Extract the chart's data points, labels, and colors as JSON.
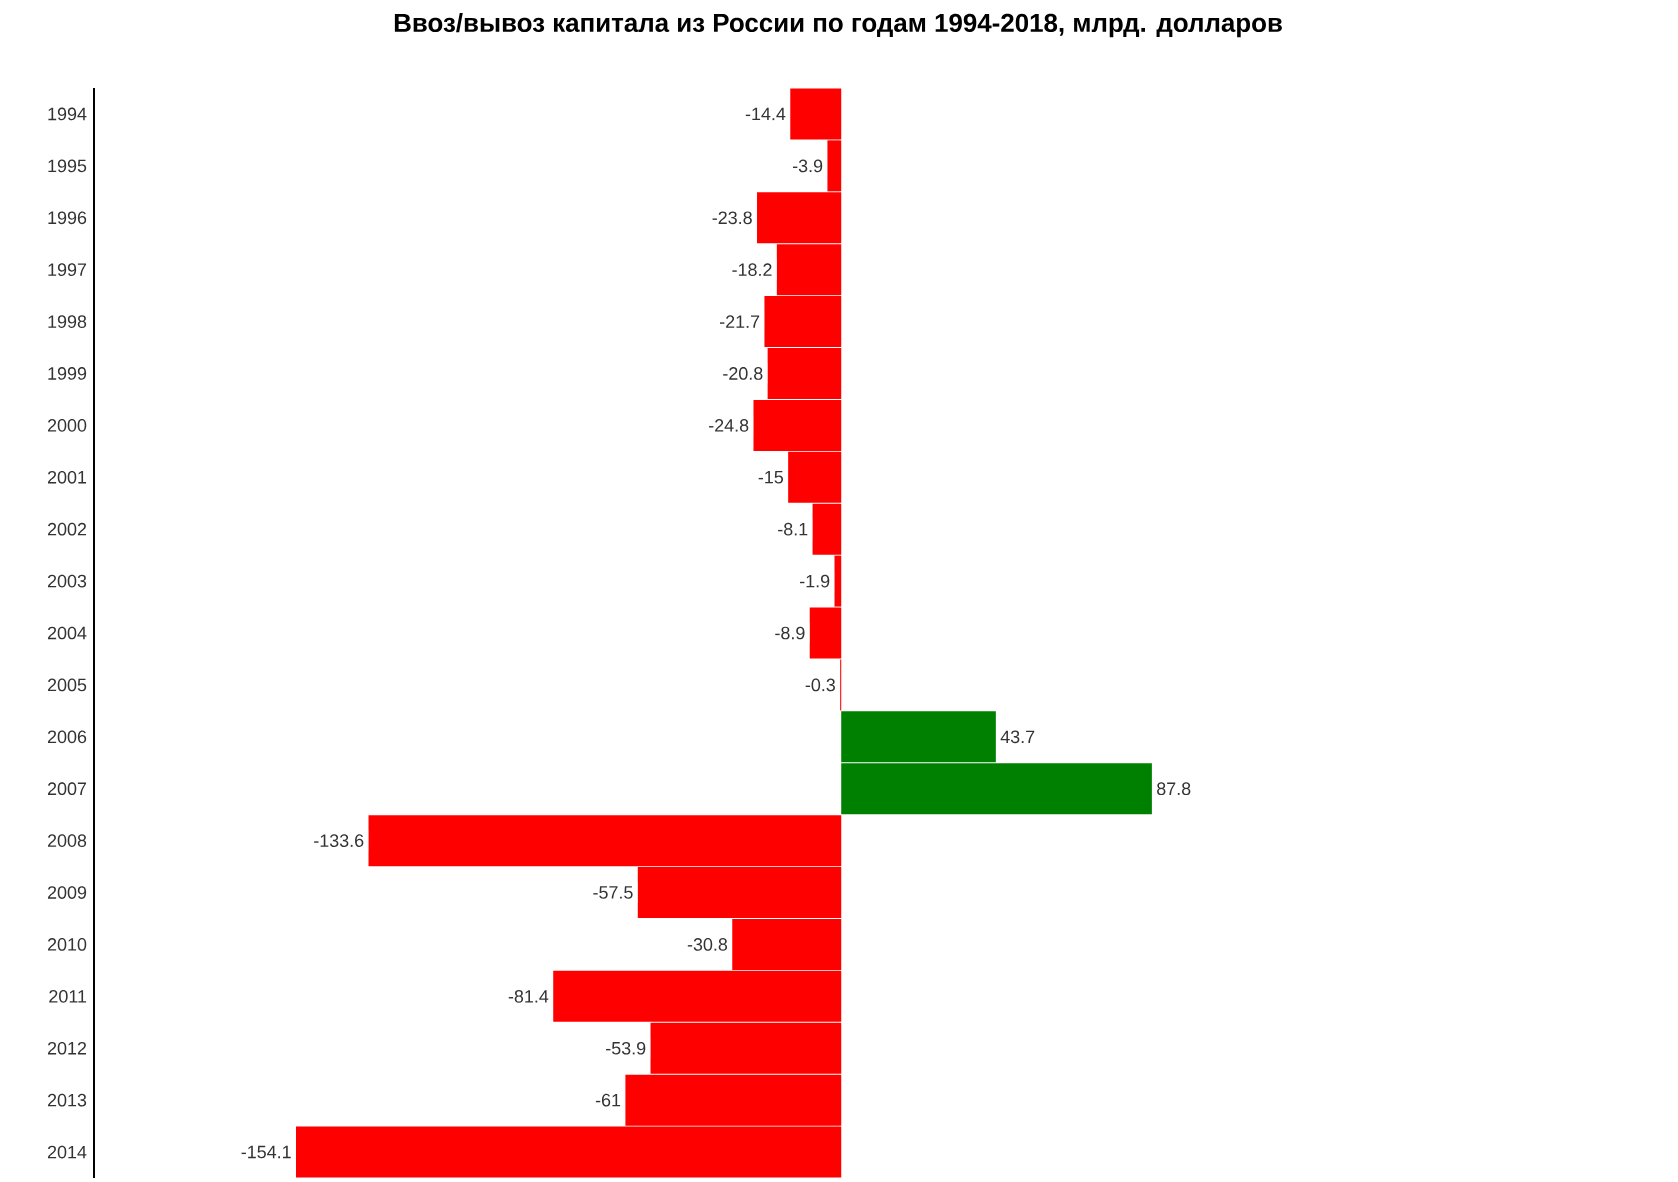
{
  "chart_data": {
    "type": "bar",
    "orientation": "horizontal",
    "title": "Ввоз/вывоз капитала из России по годам 1994-2018, млрд. долларов",
    "categories": [
      "1994",
      "1995",
      "1996",
      "1997",
      "1998",
      "1999",
      "2000",
      "2001",
      "2002",
      "2003",
      "2004",
      "2005",
      "2006",
      "2007",
      "2008",
      "2009",
      "2010",
      "2011",
      "2012",
      "2013",
      "2014"
    ],
    "values": [
      -14.4,
      -3.9,
      -23.8,
      -18.2,
      -21.7,
      -20.8,
      -24.8,
      -15,
      -8.1,
      -1.9,
      -8.9,
      -0.3,
      43.7,
      87.8,
      -133.6,
      -57.5,
      -30.8,
      -81.4,
      -53.9,
      -61,
      -154.1
    ],
    "colors": [
      "#ff0000",
      "#ff0000",
      "#ff0000",
      "#ff0000",
      "#ff0000",
      "#ff0000",
      "#ff0000",
      "#ff0000",
      "#ff0000",
      "#ff0000",
      "#ff0000",
      "#ff0000",
      "#008000",
      "#008000",
      "#ff0000",
      "#ff0000",
      "#ff0000",
      "#ff0000",
      "#ff0000",
      "#ff0000",
      "#ff0000"
    ],
    "data_labels": true
  }
}
